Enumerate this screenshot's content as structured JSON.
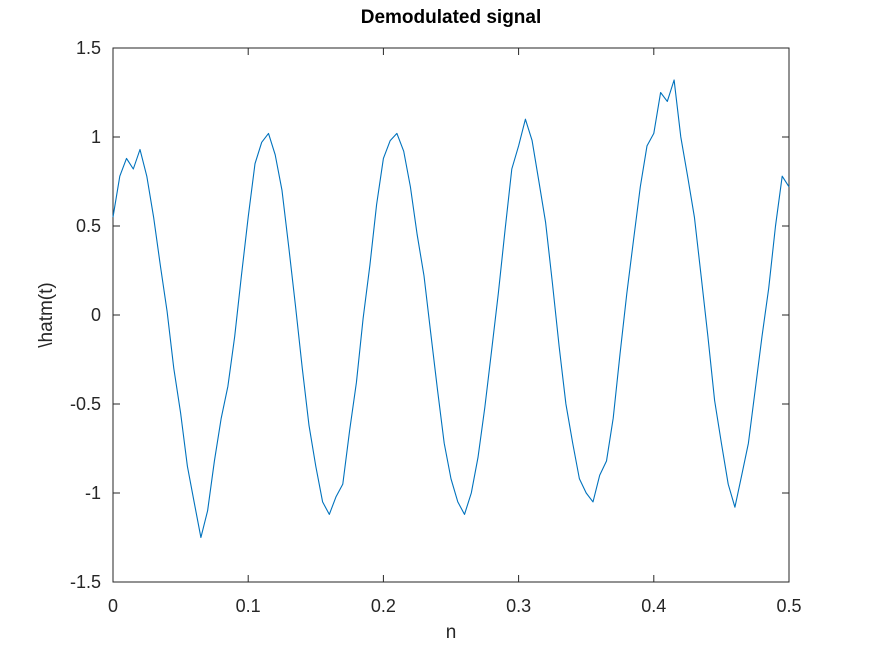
{
  "chart_data": {
    "type": "line",
    "title": "Demodulated signal",
    "xlabel": "n",
    "ylabel": "\\hatm(t)",
    "xlim": [
      0,
      0.5
    ],
    "ylim": [
      -1.5,
      1.5
    ],
    "xticks": [
      0,
      0.1,
      0.2,
      0.3,
      0.4,
      0.5
    ],
    "xtick_labels": [
      "0",
      "0.1",
      "0.2",
      "0.3",
      "0.4",
      "0.5"
    ],
    "yticks": [
      -1.5,
      -1,
      -0.5,
      0,
      0.5,
      1,
      1.5
    ],
    "ytick_labels": [
      "-1.5",
      "-1",
      "-0.5",
      "0",
      "0.5",
      "1",
      "1.5"
    ],
    "grid": false,
    "box": true,
    "series": [
      {
        "color": "#0072BD",
        "x": [
          0,
          0.005,
          0.01,
          0.015,
          0.02,
          0.025,
          0.03,
          0.035,
          0.04,
          0.045,
          0.05,
          0.055,
          0.06,
          0.065,
          0.07,
          0.075,
          0.08,
          0.085,
          0.09,
          0.095,
          0.1,
          0.105,
          0.11,
          0.115,
          0.12,
          0.125,
          0.13,
          0.135,
          0.14,
          0.145,
          0.15,
          0.155,
          0.16,
          0.165,
          0.17,
          0.175,
          0.18,
          0.185,
          0.19,
          0.195,
          0.2,
          0.205,
          0.21,
          0.215,
          0.22,
          0.225,
          0.23,
          0.235,
          0.24,
          0.245,
          0.25,
          0.255,
          0.26,
          0.265,
          0.27,
          0.275,
          0.28,
          0.285,
          0.29,
          0.295,
          0.3,
          0.305,
          0.31,
          0.315,
          0.32,
          0.325,
          0.33,
          0.335,
          0.34,
          0.345,
          0.35,
          0.355,
          0.36,
          0.365,
          0.37,
          0.375,
          0.38,
          0.385,
          0.39,
          0.395,
          0.4,
          0.405,
          0.41,
          0.415,
          0.42,
          0.425,
          0.43,
          0.435,
          0.44,
          0.445,
          0.45,
          0.455,
          0.46,
          0.465,
          0.47,
          0.475,
          0.48,
          0.485,
          0.49,
          0.495,
          0.5
        ],
        "y": [
          0.55,
          0.78,
          0.88,
          0.82,
          0.93,
          0.78,
          0.55,
          0.28,
          0.02,
          -0.3,
          -0.55,
          -0.85,
          -1.05,
          -1.25,
          -1.1,
          -0.82,
          -0.58,
          -0.4,
          -0.12,
          0.22,
          0.55,
          0.85,
          0.97,
          1.02,
          0.9,
          0.7,
          0.38,
          0.05,
          -0.3,
          -0.62,
          -0.85,
          -1.05,
          -1.12,
          -1.02,
          -0.95,
          -0.65,
          -0.38,
          -0.02,
          0.28,
          0.62,
          0.88,
          0.98,
          1.02,
          0.92,
          0.72,
          0.45,
          0.22,
          -0.1,
          -0.42,
          -0.72,
          -0.92,
          -1.05,
          -1.12,
          -1.0,
          -0.8,
          -0.52,
          -0.2,
          0.12,
          0.48,
          0.82,
          0.95,
          1.1,
          0.98,
          0.75,
          0.52,
          0.18,
          -0.18,
          -0.5,
          -0.72,
          -0.92,
          -1.0,
          -1.05,
          -0.9,
          -0.82,
          -0.58,
          -0.22,
          0.12,
          0.42,
          0.72,
          0.95,
          1.02,
          1.25,
          1.2,
          1.32,
          1.0,
          0.78,
          0.55,
          0.22,
          -0.12,
          -0.48,
          -0.72,
          -0.95,
          -1.08,
          -0.9,
          -0.72,
          -0.42,
          -0.12,
          0.15,
          0.5,
          0.78,
          0.72
        ]
      }
    ]
  }
}
